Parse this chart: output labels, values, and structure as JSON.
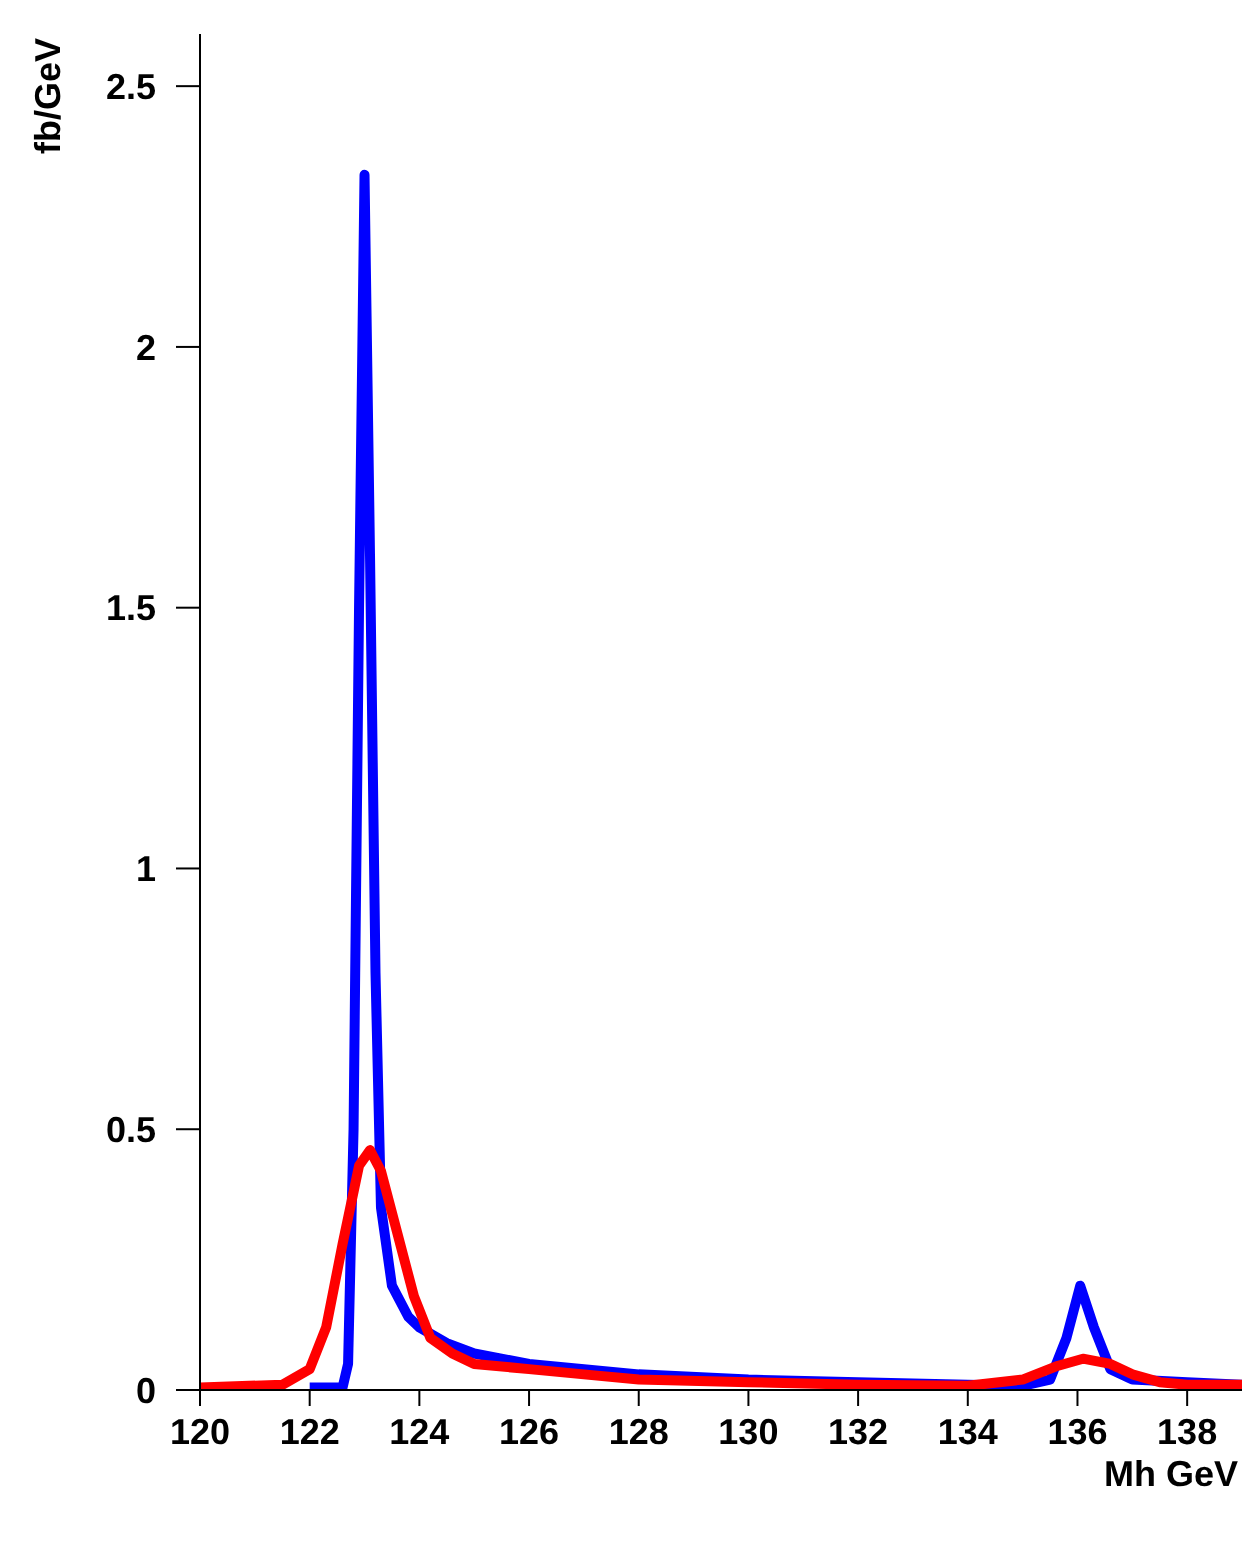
{
  "chart_data": {
    "type": "line",
    "xlabel": "Mh  GeV",
    "ylabel": "fb/GeV",
    "xlim": [
      120,
      139
    ],
    "ylim": [
      0,
      2.6
    ],
    "xticks": [
      120,
      122,
      124,
      126,
      128,
      130,
      132,
      134,
      136,
      138
    ],
    "yticks": [
      0,
      0.5,
      1,
      1.5,
      2,
      2.5
    ],
    "grid": false,
    "legend": false,
    "marker": "none",
    "line_style": "solid",
    "series": [
      {
        "color": "#0000ff",
        "x": [
          122,
          122.6,
          122.7,
          122.8,
          122.9,
          123.0,
          123.1,
          123.2,
          123.3,
          123.5,
          123.8,
          124,
          124.5,
          125,
          126,
          127,
          128,
          130,
          132,
          134,
          135,
          135.5,
          135.8,
          136.05,
          136.3,
          136.6,
          137,
          138,
          139
        ],
        "values": [
          0.005,
          0.005,
          0.05,
          0.5,
          1.5,
          2.33,
          1.6,
          0.8,
          0.35,
          0.2,
          0.14,
          0.12,
          0.09,
          0.07,
          0.05,
          0.04,
          0.03,
          0.02,
          0.015,
          0.01,
          0.008,
          0.02,
          0.1,
          0.2,
          0.12,
          0.04,
          0.02,
          0.015,
          0.01
        ]
      },
      {
        "color": "#ff0000",
        "x": [
          120,
          121.5,
          122,
          122.3,
          122.6,
          122.9,
          123.1,
          123.3,
          123.6,
          123.9,
          124.2,
          124.6,
          125,
          126,
          127,
          128,
          130,
          132,
          134,
          135,
          135.6,
          136.1,
          136.6,
          137,
          137.5,
          138,
          139
        ],
        "values": [
          0.005,
          0.01,
          0.04,
          0.12,
          0.28,
          0.43,
          0.46,
          0.42,
          0.3,
          0.18,
          0.1,
          0.07,
          0.05,
          0.04,
          0.03,
          0.02,
          0.015,
          0.01,
          0.008,
          0.02,
          0.045,
          0.06,
          0.05,
          0.03,
          0.015,
          0.01,
          0.01
        ]
      }
    ]
  }
}
